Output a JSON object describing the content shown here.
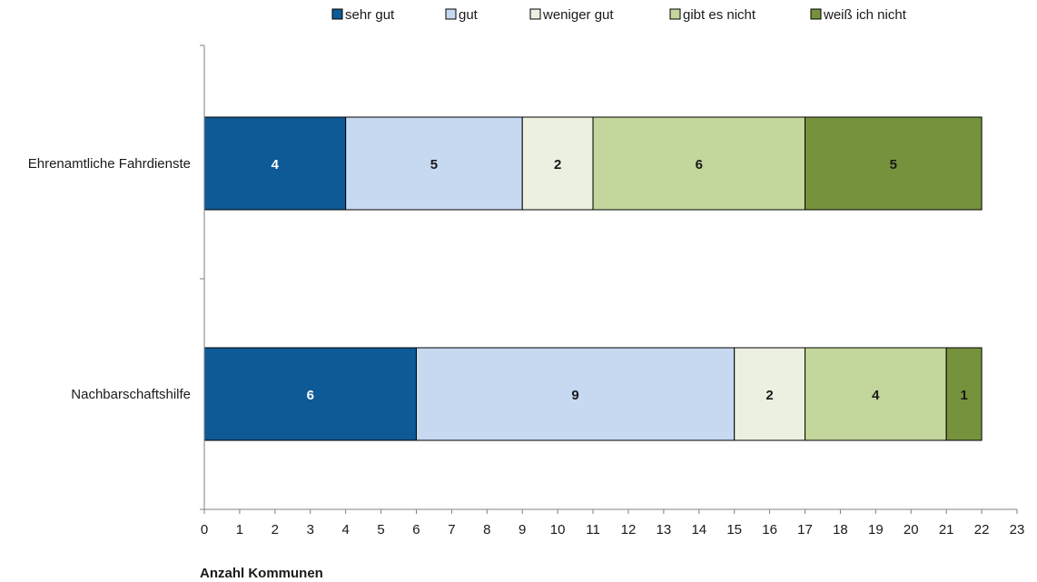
{
  "chart_data": {
    "type": "bar",
    "orientation": "horizontal",
    "stacked": true,
    "categories": [
      "Ehrenamtliche Fahrdienste",
      "Nachbarschaftshilfe"
    ],
    "series": [
      {
        "name": "sehr gut",
        "color": "#0e5a96",
        "label_color": "#ffffff",
        "values": [
          4,
          6
        ]
      },
      {
        "name": "gut",
        "color": "#c7d9f1",
        "label_color": "#1a1a1a",
        "values": [
          5,
          9
        ]
      },
      {
        "name": "weniger gut",
        "color": "#ebf0e1",
        "label_color": "#1a1a1a",
        "values": [
          2,
          2
        ]
      },
      {
        "name": "gibt es nicht",
        "color": "#c3d69b",
        "label_color": "#1a1a1a",
        "values": [
          6,
          4
        ]
      },
      {
        "name": "weiß ich nicht",
        "color": "#76923c",
        "label_color": "#1a1a1a",
        "values": [
          5,
          1
        ]
      }
    ],
    "xlabel": "Anzahl Kommunen",
    "ylabel": "",
    "xlim": [
      0,
      23
    ],
    "xticks": [
      0,
      1,
      2,
      3,
      4,
      5,
      6,
      7,
      8,
      9,
      10,
      11,
      12,
      13,
      14,
      15,
      16,
      17,
      18,
      19,
      20,
      21,
      22,
      23
    ],
    "grid": false,
    "legend_position": "top"
  }
}
